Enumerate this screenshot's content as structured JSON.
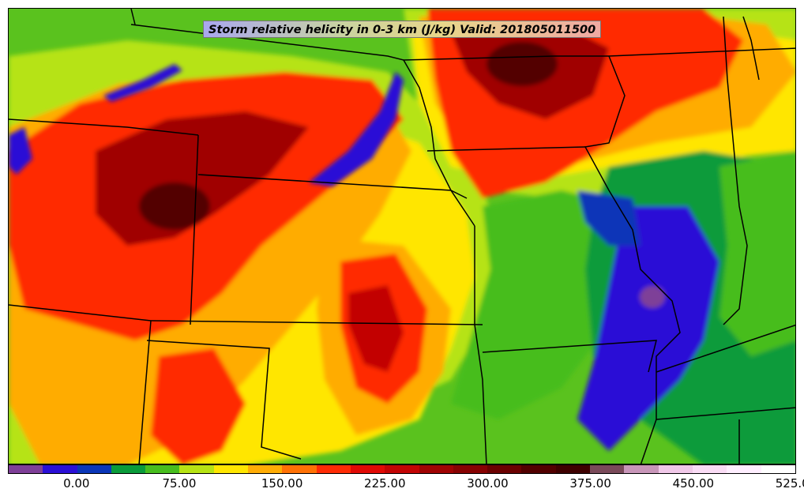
{
  "title": "Storm relative helicity in 0-3 km (J/kg) Valid: 201805011500",
  "colorbar": {
    "colors": [
      "#7e3f98",
      "#2a0fd6",
      "#0a36b8",
      "#0a9b3a",
      "#47bd1e",
      "#b6e314",
      "#ffe600",
      "#ffac05",
      "#ff7105",
      "#ff2b05",
      "#e00a05",
      "#c20404",
      "#a00303",
      "#870202",
      "#6b0101",
      "#520000",
      "#3e0000",
      "#7a4a5a",
      "#c896b9",
      "#f0c8e8",
      "#fadcf5",
      "#ffeeff",
      "#ffffff"
    ],
    "tick_labels": [
      "0.00",
      "75.00",
      "150.00",
      "225.00",
      "300.00",
      "375.00",
      "450.00",
      "525.00"
    ]
  },
  "legend_colors": {
    "background": "#5ac21e",
    "state_lines": "#000000"
  }
}
